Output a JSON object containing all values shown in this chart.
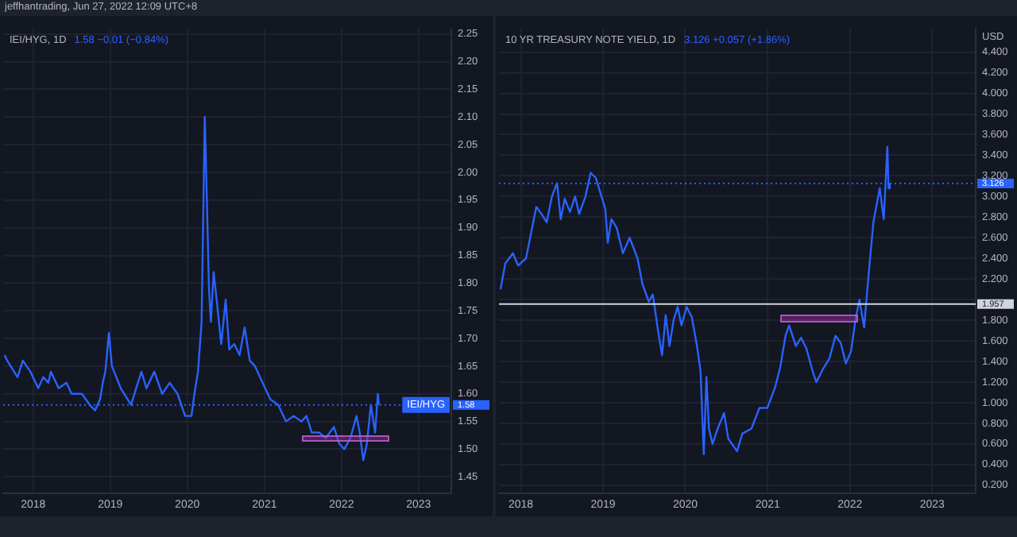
{
  "chart_data": [
    {
      "type": "line",
      "title": "IEI/HYG, 1D",
      "subtitle": "1.58 −0.01 (−0.84%)",
      "annotations": [
        "jeffhantrading, Jun 27, 2022 12:09 UTC+8"
      ],
      "series": [
        {
          "name": "IEI/HYG",
          "color": "#2962ff",
          "x": [
            "2017-08-19",
            "2017-08-31",
            "2017-10-19",
            "2017-11-13",
            "2017-12-19",
            "2018-01-25",
            "2018-02-18",
            "2018-03-14",
            "2018-03-26",
            "2018-05-02",
            "2018-06-08",
            "2018-07-02",
            "2018-08-20",
            "2018-09-26",
            "2018-10-21",
            "2018-11-14",
            "2018-11-27",
            "2018-12-09",
            "2018-12-26",
            "2019-01-09",
            "2019-02-20",
            "2019-04-10",
            "2019-05-04",
            "2019-05-29",
            "2019-06-22",
            "2019-07-29",
            "2019-09-04",
            "2019-10-10",
            "2019-11-16",
            "2019-12-22",
            "2020-01-21",
            "2020-02-04",
            "2020-02-21",
            "2020-03-09",
            "2020-03-24",
            "2020-04-03",
            "2020-04-13",
            "2020-04-22",
            "2020-05-05",
            "2020-05-22",
            "2020-06-10",
            "2020-07-01",
            "2020-07-18",
            "2020-08-11",
            "2020-09-05",
            "2020-09-29",
            "2020-10-23",
            "2020-11-17",
            "2020-12-23",
            "2021-01-29",
            "2021-03-07",
            "2021-04-13",
            "2021-05-19",
            "2021-06-25",
            "2021-07-19",
            "2021-08-13",
            "2021-09-18",
            "2021-10-18",
            "2021-11-26",
            "2021-12-21",
            "2022-01-14",
            "2022-02-12",
            "2022-03-13",
            "2022-03-28",
            "2022-04-14",
            "2022-05-01",
            "2022-05-20",
            "2022-06-09",
            "2022-06-22",
            "2022-06-27"
          ],
          "values": [
            1.67,
            1.66,
            1.63,
            1.66,
            1.64,
            1.61,
            1.63,
            1.62,
            1.64,
            1.61,
            1.62,
            1.6,
            1.6,
            1.58,
            1.57,
            1.59,
            1.62,
            1.64,
            1.71,
            1.65,
            1.61,
            1.58,
            1.61,
            1.64,
            1.61,
            1.64,
            1.6,
            1.62,
            1.6,
            1.56,
            1.56,
            1.6,
            1.64,
            1.73,
            2.1,
            1.95,
            1.79,
            1.73,
            1.82,
            1.76,
            1.69,
            1.77,
            1.68,
            1.69,
            1.67,
            1.72,
            1.66,
            1.65,
            1.62,
            1.59,
            1.58,
            1.55,
            1.56,
            1.55,
            1.56,
            1.53,
            1.53,
            1.52,
            1.54,
            1.51,
            1.5,
            1.52,
            1.56,
            1.53,
            1.48,
            1.51,
            1.58,
            1.53,
            1.6,
            1.58
          ]
        }
      ],
      "xlim": [
        "2017-08-12",
        "2023-06-05"
      ],
      "xticks": [
        {
          "value": "2018-01-01",
          "label": "2018"
        },
        {
          "value": "2019-01-01",
          "label": "2019"
        },
        {
          "value": "2020-01-01",
          "label": "2020"
        },
        {
          "value": "2021-01-01",
          "label": "2021"
        },
        {
          "value": "2022-01-01",
          "label": "2022"
        },
        {
          "value": "2023-01-01",
          "label": "2023"
        }
      ],
      "ylim": [
        1.42,
        2.26
      ],
      "yticks": [
        1.45,
        {
          "value": 1.5,
          "label": "1.50"
        },
        1.55,
        {
          "value": 1.6,
          "label": "1.60"
        },
        1.65,
        {
          "value": 1.7,
          "label": "1.70"
        },
        1.75,
        {
          "value": 1.8,
          "label": "1.80"
        },
        1.85,
        {
          "value": 1.9,
          "label": "1.90"
        },
        1.95,
        {
          "value": 2.0,
          "label": "2.00"
        },
        2.05,
        {
          "value": 2.1,
          "label": "2.10"
        },
        2.15,
        {
          "value": 2.2,
          "label": "2.20"
        },
        2.25
      ],
      "ref_lines": [
        {
          "axis": "y",
          "value": 1.58,
          "label": "1.58",
          "color": "#2962ff",
          "line_style": "dotted"
        }
      ],
      "grid": true
    },
    {
      "type": "line",
      "title": "10 YR TREASURY NOTE YIELD, 1D",
      "subtitle": "3.126 +0.057 (+1.86%)",
      "ylabel": "USD",
      "series": [
        {
          "color": "#2962ff",
          "x": [
            "2017-10-03",
            "2017-10-24",
            "2017-11-27",
            "2017-12-20",
            "2018-01-24",
            "2018-02-16",
            "2018-03-11",
            "2018-04-03",
            "2018-04-26",
            "2018-05-19",
            "2018-06-11",
            "2018-06-27",
            "2018-07-15",
            "2018-08-07",
            "2018-08-30",
            "2018-09-17",
            "2018-10-15",
            "2018-11-07",
            "2018-11-30",
            "2018-12-18",
            "2019-01-11",
            "2019-01-22",
            "2019-02-07",
            "2019-03-02",
            "2019-03-30",
            "2019-04-29",
            "2019-06-03",
            "2019-06-25",
            "2019-07-23",
            "2019-08-10",
            "2019-09-02",
            "2019-09-20",
            "2019-10-06",
            "2019-10-23",
            "2019-11-10",
            "2019-11-28",
            "2019-12-15",
            "2020-01-07",
            "2020-01-30",
            "2020-02-22",
            "2020-03-09",
            "2020-03-23",
            "2020-04-04",
            "2020-04-15",
            "2020-05-01",
            "2020-05-24",
            "2020-06-21",
            "2020-07-10",
            "2020-08-18",
            "2020-09-10",
            "2020-10-21",
            "2020-11-25",
            "2020-12-30",
            "2021-02-03",
            "2021-02-26",
            "2021-03-21",
            "2021-04-06",
            "2021-05-06",
            "2021-05-29",
            "2021-06-21",
            "2021-07-20",
            "2021-08-05",
            "2021-09-04",
            "2021-10-02",
            "2021-10-29",
            "2021-11-21",
            "2021-12-14",
            "2022-01-06",
            "2022-01-25",
            "2022-02-12",
            "2022-03-05",
            "2022-03-23",
            "2022-04-15",
            "2022-05-13",
            "2022-05-31",
            "2022-06-16",
            "2022-06-21",
            "2022-06-27"
          ],
          "values": [
            2.1,
            2.35,
            2.45,
            2.33,
            2.4,
            2.65,
            2.9,
            2.83,
            2.75,
            3.0,
            3.13,
            2.78,
            2.98,
            2.85,
            3.0,
            2.83,
            3.0,
            3.23,
            3.18,
            3.05,
            2.88,
            2.55,
            2.78,
            2.7,
            2.45,
            2.6,
            2.4,
            2.15,
            1.98,
            2.05,
            1.7,
            1.46,
            1.85,
            1.55,
            1.8,
            1.93,
            1.75,
            1.93,
            1.83,
            1.55,
            1.3,
            0.5,
            1.25,
            0.75,
            0.6,
            0.75,
            0.9,
            0.65,
            0.53,
            0.7,
            0.75,
            0.95,
            0.95,
            1.15,
            1.35,
            1.65,
            1.75,
            1.55,
            1.63,
            1.53,
            1.3,
            1.2,
            1.33,
            1.43,
            1.65,
            1.58,
            1.38,
            1.5,
            1.8,
            2.0,
            1.73,
            2.2,
            2.75,
            3.08,
            2.78,
            3.48,
            3.08,
            3.13
          ]
        }
      ],
      "xlim": [
        "2017-09-26",
        "2023-07-13"
      ],
      "xticks": [
        {
          "value": "2018-01-01",
          "label": "2018"
        },
        {
          "value": "2019-01-01",
          "label": "2019"
        },
        {
          "value": "2020-01-01",
          "label": "2020"
        },
        {
          "value": "2021-01-01",
          "label": "2021"
        },
        {
          "value": "2022-01-01",
          "label": "2022"
        },
        {
          "value": "2023-01-01",
          "label": "2023"
        }
      ],
      "ylim": [
        0.12,
        4.63
      ],
      "yticks": [
        {
          "value": 0.2,
          "label": "0.200"
        },
        {
          "value": 0.4,
          "label": "0.400"
        },
        {
          "value": 0.6,
          "label": "0.600"
        },
        {
          "value": 0.8,
          "label": "0.800"
        },
        {
          "value": 1.0,
          "label": "1.000"
        },
        {
          "value": 1.2,
          "label": "1.200"
        },
        {
          "value": 1.4,
          "label": "1.400"
        },
        {
          "value": 1.6,
          "label": "1.600"
        },
        {
          "value": 1.8,
          "label": "1.800"
        },
        {
          "value": 2.0,
          "label": null
        },
        {
          "value": 2.2,
          "label": "2.200"
        },
        {
          "value": 2.4,
          "label": "2.400"
        },
        {
          "value": 2.6,
          "label": "2.600"
        },
        {
          "value": 2.8,
          "label": "2.800"
        },
        {
          "value": 3.0,
          "label": "3.000"
        },
        {
          "value": 3.2,
          "label": "3.200"
        },
        {
          "value": 3.4,
          "label": "3.400"
        },
        {
          "value": 3.6,
          "label": "3.600"
        },
        {
          "value": 3.8,
          "label": "3.800"
        },
        {
          "value": 4.0,
          "label": "4.000"
        },
        {
          "value": 4.2,
          "label": "4.200"
        },
        {
          "value": 4.4,
          "label": "4.400"
        }
      ],
      "ref_lines": [
        {
          "axis": "y",
          "value": 1.957,
          "label": "1.957",
          "color": "#d1d4dc",
          "line_style": "solid"
        },
        {
          "axis": "y",
          "value": 3.126,
          "label": "3.126",
          "color": "#2962ff",
          "line_style": "dotted"
        }
      ],
      "grid": true
    }
  ]
}
